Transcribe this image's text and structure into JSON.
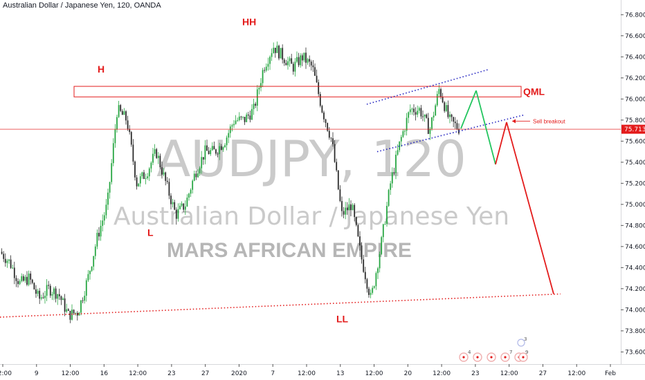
{
  "header": {
    "title": "Australian Dollar / Japanese Yen, 120, OANDA"
  },
  "watermark": {
    "symbol": "AUDJPY, 120",
    "name": "Australian Dollar / Japanese Yen",
    "author": "MARS AFRICAN EMPIRE"
  },
  "chart_data": {
    "type": "candlestick",
    "y_axis": {
      "range": [
        73.55,
        76.9
      ],
      "ticks": [
        "76.800",
        "76.600",
        "76.400",
        "76.200",
        "76.000",
        "75.800",
        "75.600",
        "75.400",
        "75.200",
        "75.000",
        "74.800",
        "74.600",
        "74.400",
        "74.200",
        "74.000",
        "73.800",
        "73.600"
      ],
      "current_price": "75.713"
    },
    "x_axis": {
      "ticks": [
        "12:00",
        "9",
        "12:00",
        "16",
        "12:00",
        "23",
        "27",
        "2020",
        "7",
        "12:00",
        "13",
        "12:00",
        "20",
        "12:00",
        "23",
        "12:00",
        "27",
        "12:00",
        "Feb"
      ]
    },
    "price_path": [
      74.55,
      74.45,
      74.25,
      74.3,
      74.1,
      74.2,
      74.15,
      73.95,
      73.98,
      74.3,
      74.7,
      75.0,
      75.9,
      75.8,
      75.2,
      75.3,
      75.5,
      75.2,
      74.9,
      75.0,
      75.3,
      75.5,
      75.5,
      75.6,
      75.8,
      75.8,
      75.9,
      76.3,
      76.5,
      76.4,
      76.3,
      76.4,
      76.3,
      75.9,
      75.6,
      74.9,
      75.0,
      74.5,
      74.1,
      74.6,
      75.2,
      75.6,
      75.9,
      75.9,
      75.7,
      76.1,
      75.8,
      75.72
    ],
    "projection": [
      75.72,
      76.08,
      75.38,
      75.78,
      74.15
    ],
    "annotations": {
      "left_shoulder": "H",
      "head": "HH",
      "low_1": "L",
      "low_2": "LL",
      "zone": "QML",
      "signal": "Sell breakout"
    },
    "qml_zone": [
      76.02,
      76.12
    ],
    "channel_upper": [
      [
        75.95,
        76.03
      ],
      [
        76.28,
        76.28
      ]
    ],
    "channel_lower": [
      [
        75.5,
        75.5
      ],
      [
        75.85,
        75.85
      ]
    ],
    "trendline": [
      [
        73.93,
        73.93
      ],
      [
        74.15,
        74.15
      ]
    ],
    "events": [
      "4",
      "7",
      "3",
      "9"
    ],
    "colors": {
      "up": "#26a641",
      "down": "#2b2b2b",
      "annotation": "#e31b1b",
      "channel": "#1f1fbf",
      "projection_up": "#22c55e",
      "price_tag": "#e31b1b"
    }
  }
}
